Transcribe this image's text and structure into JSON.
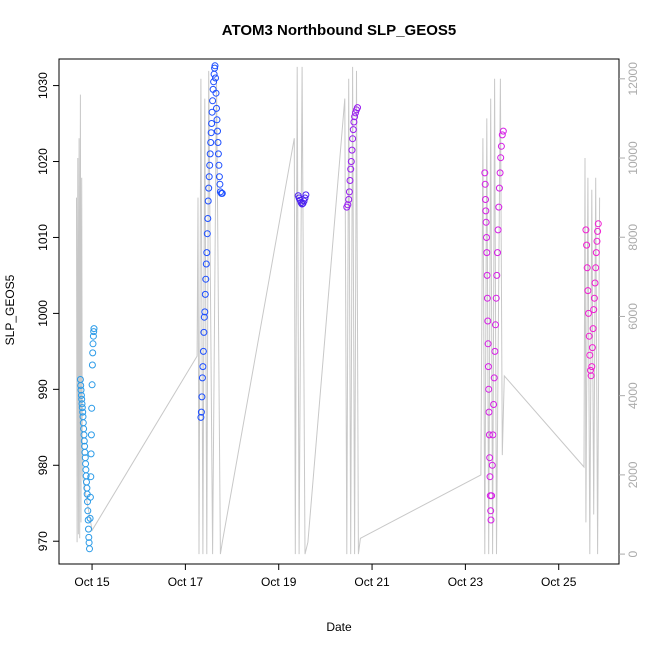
{
  "chart_data": {
    "type": "scatter",
    "title": "ATOM3 Northbound SLP_GEOS5",
    "xlabel": "Date",
    "ylabel": "SLP_GEOS5",
    "x_axis_kind": "date",
    "xlim": [
      "2016-10-14 07:00",
      "2016-10-26 07:00"
    ],
    "x_ticks": [
      {
        "date": "2016-10-15",
        "label": "Oct 15"
      },
      {
        "date": "2016-10-17",
        "label": "Oct 17"
      },
      {
        "date": "2016-10-19",
        "label": "Oct 19"
      },
      {
        "date": "2016-10-21",
        "label": "Oct 21"
      },
      {
        "date": "2016-10-23",
        "label": "Oct 23"
      },
      {
        "date": "2016-10-25",
        "label": "Oct 25"
      }
    ],
    "ylim": [
      967,
      1033.5
    ],
    "y_ticks": [
      970,
      980,
      990,
      1000,
      1010,
      1020,
      1030
    ],
    "y2lim": [
      -250,
      12500
    ],
    "y2_ticks": [
      0,
      2000,
      4000,
      6000,
      8000,
      10000,
      12000
    ],
    "grid": false,
    "legend": "none",
    "colors": {
      "altitude_line": "#c8c8c8",
      "axis": "#000000",
      "right_axis": "#aaaaaa",
      "color_ramp": [
        "#2b9be8",
        "#1d4fff",
        "#4a1ff0",
        "#9a1ef0",
        "#d61ee6",
        "#f01ed2"
      ]
    },
    "series": [
      {
        "color": "#2b9be8",
        "points": [
          [
            "2016-10-14 18:00",
            991.3
          ],
          [
            "2016-10-14 18:10",
            990.5
          ],
          [
            "2016-10-14 18:20",
            989.9
          ],
          [
            "2016-10-14 18:30",
            989.2
          ],
          [
            "2016-10-14 18:40",
            988.7
          ],
          [
            "2016-10-14 18:50",
            988.1
          ],
          [
            "2016-10-14 19:00",
            987.6
          ],
          [
            "2016-10-14 19:10",
            987.0
          ],
          [
            "2016-10-14 19:20",
            986.4
          ],
          [
            "2016-10-14 19:30",
            985.6
          ],
          [
            "2016-10-14 19:40",
            984.8
          ],
          [
            "2016-10-14 19:50",
            984.0
          ],
          [
            "2016-10-14 20:00",
            983.2
          ],
          [
            "2016-10-14 20:10",
            982.5
          ],
          [
            "2016-10-14 20:20",
            981.7
          ],
          [
            "2016-10-14 20:30",
            981.0
          ],
          [
            "2016-10-14 20:40",
            980.2
          ],
          [
            "2016-10-14 20:50",
            979.4
          ],
          [
            "2016-10-14 21:00",
            978.6
          ],
          [
            "2016-10-14 21:10",
            977.8
          ],
          [
            "2016-10-14 21:20",
            977.0
          ],
          [
            "2016-10-14 21:30",
            976.2
          ],
          [
            "2016-10-14 21:40",
            975.2
          ],
          [
            "2016-10-14 21:50",
            974.0
          ],
          [
            "2016-10-14 22:00",
            972.8
          ],
          [
            "2016-10-14 22:10",
            971.6
          ],
          [
            "2016-10-14 22:20",
            970.5
          ],
          [
            "2016-10-14 22:30",
            969.8
          ],
          [
            "2016-10-14 22:40",
            969.0
          ],
          [
            "2016-10-14 23:00",
            973.0
          ],
          [
            "2016-10-14 23:10",
            975.8
          ],
          [
            "2016-10-14 23:20",
            978.5
          ],
          [
            "2016-10-14 23:30",
            981.5
          ],
          [
            "2016-10-14 23:40",
            984.0
          ],
          [
            "2016-10-14 23:50",
            987.5
          ],
          [
            "2016-10-15 00:00",
            990.6
          ],
          [
            "2016-10-15 00:10",
            993.2
          ],
          [
            "2016-10-15 00:20",
            994.8
          ],
          [
            "2016-10-15 00:30",
            996.0
          ],
          [
            "2016-10-15 00:40",
            997.0
          ],
          [
            "2016-10-15 00:50",
            997.6
          ],
          [
            "2016-10-15 01:00",
            998.0
          ]
        ]
      },
      {
        "color": "#1d4fff",
        "points": [
          [
            "2016-10-17 08:00",
            986.3
          ],
          [
            "2016-10-17 08:15",
            987.0
          ],
          [
            "2016-10-17 08:30",
            989.0
          ],
          [
            "2016-10-17 08:45",
            991.5
          ],
          [
            "2016-10-17 09:00",
            993.0
          ],
          [
            "2016-10-17 09:15",
            995.0
          ],
          [
            "2016-10-17 09:30",
            997.5
          ],
          [
            "2016-10-17 09:45",
            999.5
          ],
          [
            "2016-10-17 10:00",
            1000.2
          ],
          [
            "2016-10-17 10:15",
            1002.5
          ],
          [
            "2016-10-17 10:30",
            1004.5
          ],
          [
            "2016-10-17 10:45",
            1006.5
          ],
          [
            "2016-10-17 11:00",
            1008.0
          ],
          [
            "2016-10-17 11:15",
            1010.5
          ],
          [
            "2016-10-17 11:30",
            1012.5
          ],
          [
            "2016-10-17 11:45",
            1014.8
          ],
          [
            "2016-10-17 12:00",
            1016.5
          ],
          [
            "2016-10-17 12:15",
            1018.0
          ],
          [
            "2016-10-17 12:30",
            1019.5
          ],
          [
            "2016-10-17 12:45",
            1021.0
          ],
          [
            "2016-10-17 13:00",
            1022.5
          ],
          [
            "2016-10-17 13:15",
            1023.8
          ],
          [
            "2016-10-17 13:30",
            1025.0
          ],
          [
            "2016-10-17 13:45",
            1026.5
          ],
          [
            "2016-10-17 14:00",
            1028.0
          ],
          [
            "2016-10-17 14:15",
            1029.5
          ],
          [
            "2016-10-17 14:30",
            1030.5
          ],
          [
            "2016-10-17 14:45",
            1031.5
          ],
          [
            "2016-10-17 15:00",
            1032.3
          ],
          [
            "2016-10-17 15:15",
            1032.6
          ],
          [
            "2016-10-17 15:30",
            1031.0
          ],
          [
            "2016-10-17 15:45",
            1029.0
          ],
          [
            "2016-10-17 16:00",
            1027.0
          ],
          [
            "2016-10-17 16:15",
            1025.5
          ],
          [
            "2016-10-17 16:30",
            1024.0
          ],
          [
            "2016-10-17 16:45",
            1022.5
          ],
          [
            "2016-10-17 17:00",
            1021.0
          ],
          [
            "2016-10-17 17:15",
            1019.5
          ],
          [
            "2016-10-17 17:30",
            1018.0
          ],
          [
            "2016-10-17 17:45",
            1017.0
          ],
          [
            "2016-10-17 18:00",
            1016.0
          ],
          [
            "2016-10-17 18:30",
            1015.8
          ],
          [
            "2016-10-17 19:00",
            1015.8
          ]
        ]
      },
      {
        "color": "#4a1ff0",
        "points": [
          [
            "2016-10-19 10:00",
            1015.5
          ],
          [
            "2016-10-19 10:30",
            1015.2
          ],
          [
            "2016-10-19 11:00",
            1014.9
          ],
          [
            "2016-10-19 11:30",
            1014.6
          ],
          [
            "2016-10-19 12:00",
            1014.4
          ],
          [
            "2016-10-19 12:30",
            1014.5
          ],
          [
            "2016-10-19 13:00",
            1014.8
          ],
          [
            "2016-10-19 13:30",
            1015.2
          ],
          [
            "2016-10-19 14:00",
            1015.6
          ]
        ]
      },
      {
        "color": "#9a1ef0",
        "points": [
          [
            "2016-10-20 11:00",
            1014.0
          ],
          [
            "2016-10-20 11:30",
            1014.3
          ],
          [
            "2016-10-20 12:00",
            1015.0
          ],
          [
            "2016-10-20 12:20",
            1016.0
          ],
          [
            "2016-10-20 12:40",
            1017.5
          ],
          [
            "2016-10-20 13:00",
            1019.0
          ],
          [
            "2016-10-20 13:20",
            1020.0
          ],
          [
            "2016-10-20 13:40",
            1021.5
          ],
          [
            "2016-10-20 14:00",
            1023.0
          ],
          [
            "2016-10-20 14:20",
            1024.2
          ],
          [
            "2016-10-20 14:40",
            1025.2
          ],
          [
            "2016-10-20 15:00",
            1025.9
          ],
          [
            "2016-10-20 15:30",
            1026.4
          ],
          [
            "2016-10-20 16:00",
            1026.8
          ],
          [
            "2016-10-20 16:30",
            1027.1
          ]
        ]
      },
      {
        "color": "#d61ee6",
        "points": [
          [
            "2016-10-23 10:00",
            1018.5
          ],
          [
            "2016-10-23 10:10",
            1017.0
          ],
          [
            "2016-10-23 10:20",
            1015.0
          ],
          [
            "2016-10-23 10:30",
            1013.5
          ],
          [
            "2016-10-23 10:40",
            1012.0
          ],
          [
            "2016-10-23 10:50",
            1010.0
          ],
          [
            "2016-10-23 11:00",
            1008.0
          ],
          [
            "2016-10-23 11:10",
            1005.0
          ],
          [
            "2016-10-23 11:20",
            1002.0
          ],
          [
            "2016-10-23 11:30",
            999.0
          ],
          [
            "2016-10-23 11:40",
            996.0
          ],
          [
            "2016-10-23 11:50",
            993.0
          ],
          [
            "2016-10-23 12:00",
            990.0
          ],
          [
            "2016-10-23 12:10",
            987.0
          ],
          [
            "2016-10-23 12:20",
            984.0
          ],
          [
            "2016-10-23 12:30",
            981.0
          ],
          [
            "2016-10-23 12:40",
            978.5
          ],
          [
            "2016-10-23 12:50",
            976.0
          ],
          [
            "2016-10-23 13:00",
            974.0
          ],
          [
            "2016-10-23 13:10",
            972.8
          ],
          [
            "2016-10-23 13:30",
            976.0
          ],
          [
            "2016-10-23 13:50",
            980.0
          ],
          [
            "2016-10-23 14:10",
            984.0
          ],
          [
            "2016-10-23 14:30",
            988.0
          ],
          [
            "2016-10-23 14:50",
            991.5
          ],
          [
            "2016-10-23 15:10",
            995.0
          ],
          [
            "2016-10-23 15:30",
            998.5
          ],
          [
            "2016-10-23 15:50",
            1002.0
          ],
          [
            "2016-10-23 16:10",
            1005.0
          ],
          [
            "2016-10-23 16:30",
            1008.0
          ],
          [
            "2016-10-23 16:50",
            1011.0
          ],
          [
            "2016-10-23 17:10",
            1014.0
          ],
          [
            "2016-10-23 17:30",
            1016.5
          ],
          [
            "2016-10-23 17:50",
            1018.5
          ],
          [
            "2016-10-23 18:10",
            1020.5
          ],
          [
            "2016-10-23 18:30",
            1022.0
          ],
          [
            "2016-10-23 19:00",
            1023.5
          ],
          [
            "2016-10-23 19:30",
            1024.0
          ]
        ]
      },
      {
        "color": "#f01ed2",
        "points": [
          [
            "2016-10-25 14:00",
            1011.0
          ],
          [
            "2016-10-25 14:20",
            1009.0
          ],
          [
            "2016-10-25 14:40",
            1006.0
          ],
          [
            "2016-10-25 15:00",
            1003.0
          ],
          [
            "2016-10-25 15:20",
            1000.0
          ],
          [
            "2016-10-25 15:40",
            997.0
          ],
          [
            "2016-10-25 16:00",
            994.5
          ],
          [
            "2016-10-25 16:20",
            992.5
          ],
          [
            "2016-10-25 16:40",
            991.8
          ],
          [
            "2016-10-25 17:00",
            993.0
          ],
          [
            "2016-10-25 17:20",
            995.5
          ],
          [
            "2016-10-25 17:40",
            998.0
          ],
          [
            "2016-10-25 18:00",
            1000.5
          ],
          [
            "2016-10-25 18:20",
            1002.0
          ],
          [
            "2016-10-25 18:40",
            1004.0
          ],
          [
            "2016-10-25 19:00",
            1006.0
          ],
          [
            "2016-10-25 19:20",
            1008.0
          ],
          [
            "2016-10-25 19:40",
            1009.5
          ],
          [
            "2016-10-25 20:00",
            1010.8
          ],
          [
            "2016-10-25 20:20",
            1011.8
          ]
        ]
      }
    ],
    "altitude_trace": [
      [
        "2016-10-14 16:00",
        9000
      ],
      [
        "2016-10-14 16:20",
        300
      ],
      [
        "2016-10-14 16:40",
        10000
      ],
      [
        "2016-10-14 17:00",
        500
      ],
      [
        "2016-10-14 17:20",
        10500
      ],
      [
        "2016-10-14 17:40",
        400
      ],
      [
        "2016-10-14 18:00",
        11600
      ],
      [
        "2016-10-14 18:20",
        800
      ],
      [
        "2016-10-14 18:40",
        9500
      ],
      [
        "2016-10-14 19:00",
        2000
      ],
      [
        "2016-10-15 00:00",
        600
      ],
      [
        "2016-10-17 06:00",
        5000
      ],
      [
        "2016-10-17 06:30",
        9000
      ],
      [
        "2016-10-17 07:00",
        0
      ],
      [
        "2016-10-17 08:00",
        12000
      ],
      [
        "2016-10-17 09:00",
        0
      ],
      [
        "2016-10-17 10:00",
        11500
      ],
      [
        "2016-10-17 11:00",
        0
      ],
      [
        "2016-10-17 12:00",
        12200
      ],
      [
        "2016-10-17 14:00",
        0
      ],
      [
        "2016-10-17 16:00",
        12000
      ],
      [
        "2016-10-17 18:00",
        0
      ],
      [
        "2016-10-17 19:00",
        300
      ],
      [
        "2016-10-19 08:00",
        10500
      ],
      [
        "2016-10-19 08:30",
        0
      ],
      [
        "2016-10-19 09:30",
        12300
      ],
      [
        "2016-10-19 10:30",
        0
      ],
      [
        "2016-10-19 12:00",
        12300
      ],
      [
        "2016-10-19 13:30",
        0
      ],
      [
        "2016-10-19 15:00",
        300
      ],
      [
        "2016-10-20 10:00",
        11500
      ],
      [
        "2016-10-20 11:00",
        0
      ],
      [
        "2016-10-20 12:00",
        12000
      ],
      [
        "2016-10-20 13:00",
        0
      ],
      [
        "2016-10-20 14:00",
        12300
      ],
      [
        "2016-10-20 15:00",
        0
      ],
      [
        "2016-10-20 16:00",
        12200
      ],
      [
        "2016-10-20 17:00",
        0
      ],
      [
        "2016-10-20 18:00",
        400
      ],
      [
        "2016-10-23 08:00",
        2000
      ],
      [
        "2016-10-23 09:00",
        10500
      ],
      [
        "2016-10-23 10:00",
        0
      ],
      [
        "2016-10-23 11:00",
        11000
      ],
      [
        "2016-10-23 12:00",
        0
      ],
      [
        "2016-10-23 13:00",
        11500
      ],
      [
        "2016-10-23 14:00",
        0
      ],
      [
        "2016-10-23 15:00",
        12000
      ],
      [
        "2016-10-23 16:00",
        0
      ],
      [
        "2016-10-23 18:00",
        12000
      ],
      [
        "2016-10-23 19:00",
        2500
      ],
      [
        "2016-10-23 20:00",
        4500
      ],
      [
        "2016-10-25 13:00",
        2200
      ],
      [
        "2016-10-25 13:30",
        10000
      ],
      [
        "2016-10-25 14:00",
        800
      ],
      [
        "2016-10-25 15:00",
        9500
      ],
      [
        "2016-10-25 16:00",
        0
      ],
      [
        "2016-10-25 17:00",
        9200
      ],
      [
        "2016-10-25 18:00",
        1000
      ],
      [
        "2016-10-25 19:00",
        9500
      ],
      [
        "2016-10-25 20:00",
        0
      ],
      [
        "2016-10-25 21:00",
        9000
      ]
    ]
  }
}
